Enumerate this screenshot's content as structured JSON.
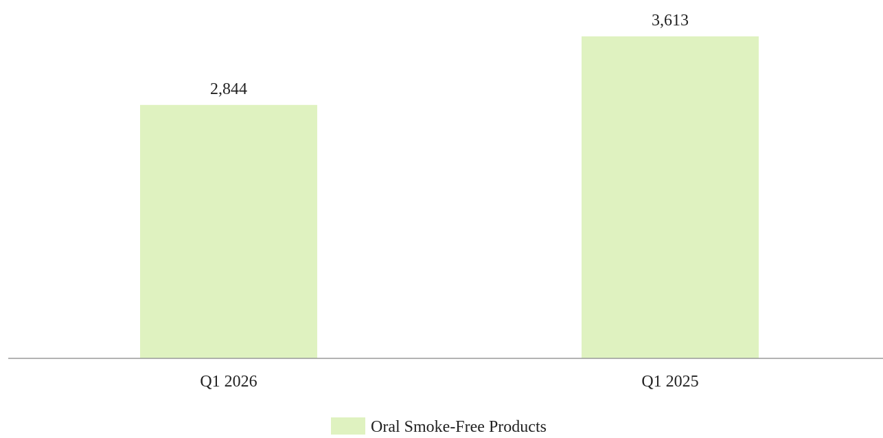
{
  "chart_data": {
    "type": "bar",
    "categories": [
      "Q1 2026",
      "Q1 2025"
    ],
    "series": [
      {
        "name": "Oral Smoke-Free Products",
        "values": [
          2844,
          3613
        ],
        "labels": [
          "2,844",
          "3,613"
        ],
        "color": "#dff2c0"
      }
    ],
    "title": "",
    "xlabel": "",
    "ylabel": "",
    "ylim": [
      0,
      3613
    ],
    "grid": false,
    "legend_position": "bottom-center",
    "axis_color": "#999999"
  }
}
